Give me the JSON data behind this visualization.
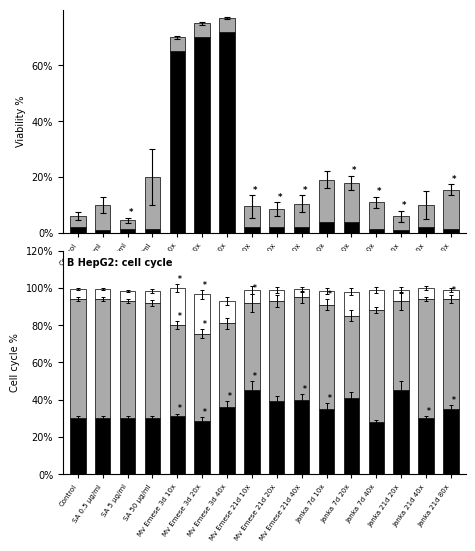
{
  "categories": [
    "Control",
    "SA 0.5 µg/ml",
    "SA 5 µg/ml",
    "SA 50 µg/ml",
    "Mv Emese 3d 10x",
    "Mv Emese 3d 20x",
    "Mv Emese 3d 40x",
    "Mv Emese 21d 10x",
    "Mv Emese 21d 20x",
    "Mv Emese 21d 40x",
    "Janka 7d 10x",
    "Janka 7d 20x",
    "Janka 7d 40x",
    "Janka 21d 20x",
    "Janka 21d 40x",
    "Janka 21d 80x"
  ],
  "viability": {
    "dead": [
      2.0,
      1.0,
      1.5,
      1.5,
      65.0,
      70.0,
      72.0,
      2.0,
      2.0,
      2.0,
      4.0,
      4.0,
      1.5,
      1.0,
      2.0,
      1.5
    ],
    "apoptotic": [
      4.0,
      9.0,
      3.0,
      18.5,
      5.0,
      5.0,
      5.0,
      7.5,
      6.5,
      8.5,
      15.0,
      14.0,
      9.5,
      5.0,
      8.0,
      14.0
    ],
    "dead_err": [
      0.5,
      0.5,
      0.5,
      0.5,
      3.0,
      3.0,
      3.0,
      0.5,
      0.5,
      0.5,
      1.0,
      2.0,
      1.0,
      0.5,
      1.5,
      0.5
    ],
    "apoptotic_err": [
      1.5,
      3.0,
      1.0,
      10.0,
      0.5,
      0.5,
      0.5,
      4.0,
      2.5,
      3.0,
      3.0,
      2.5,
      2.0,
      2.0,
      5.0,
      2.0
    ],
    "stars": [
      false,
      false,
      true,
      false,
      false,
      false,
      false,
      true,
      true,
      true,
      false,
      true,
      true,
      true,
      false,
      true
    ]
  },
  "cell_cycle": {
    "g1": [
      30.0,
      30.0,
      30.0,
      30.0,
      31.0,
      28.5,
      36.0,
      45.0,
      39.0,
      40.0,
      35.0,
      41.0,
      28.0,
      45.0,
      30.0,
      35.0
    ],
    "s": [
      64.0,
      64.0,
      63.0,
      62.0,
      49.0,
      47.0,
      45.0,
      47.0,
      54.0,
      55.0,
      56.0,
      44.0,
      60.0,
      48.0,
      64.0,
      59.0
    ],
    "g2": [
      5.5,
      5.5,
      5.5,
      6.5,
      20.0,
      21.0,
      12.0,
      7.0,
      6.0,
      4.5,
      7.5,
      13.0,
      11.0,
      6.0,
      6.0,
      5.0
    ],
    "g1_err": [
      1.0,
      1.0,
      1.0,
      1.0,
      1.5,
      2.0,
      3.0,
      5.0,
      3.0,
      3.0,
      3.0,
      3.0,
      1.0,
      5.0,
      1.0,
      2.0
    ],
    "s_err": [
      1.0,
      1.0,
      1.0,
      1.5,
      2.0,
      2.5,
      3.0,
      5.0,
      3.0,
      3.0,
      3.0,
      3.0,
      1.5,
      5.0,
      1.0,
      2.0
    ],
    "g2_err": [
      0.5,
      0.5,
      0.5,
      1.0,
      2.0,
      2.5,
      2.0,
      2.0,
      1.5,
      1.0,
      1.5,
      2.0,
      1.5,
      1.5,
      1.0,
      1.0
    ],
    "stars_g1": [
      false,
      false,
      false,
      false,
      true,
      true,
      true,
      true,
      false,
      true,
      true,
      false,
      false,
      false,
      true,
      true
    ],
    "stars_s": [
      false,
      false,
      false,
      false,
      true,
      true,
      false,
      true,
      false,
      false,
      true,
      false,
      false,
      false,
      false,
      true
    ],
    "stars_g2": [
      false,
      false,
      false,
      false,
      true,
      true,
      false,
      false,
      false,
      false,
      false,
      false,
      false,
      false,
      false,
      false
    ]
  },
  "colors": {
    "dead": "#000000",
    "apoptotic": "#aaaaaa",
    "intact_live": "#ffffff",
    "g1_black": "#000000",
    "s_gray": "#aaaaaa",
    "g2_white": "#ffffff"
  },
  "ylabel_a": "Viability %",
  "ylabel_b": "Cell cycle %",
  "yticks_a": [
    0.0,
    0.2,
    0.4,
    0.6
  ],
  "yticks_b": [
    0.0,
    0.2,
    0.4,
    0.6,
    0.8,
    1.0,
    1.2
  ],
  "yticklabels_a": [
    "0%",
    "20%",
    "40%",
    "60%"
  ],
  "yticklabels_b": [
    "0%",
    "20%",
    "40%",
    "60%",
    "80%",
    "100%",
    "120%"
  ]
}
